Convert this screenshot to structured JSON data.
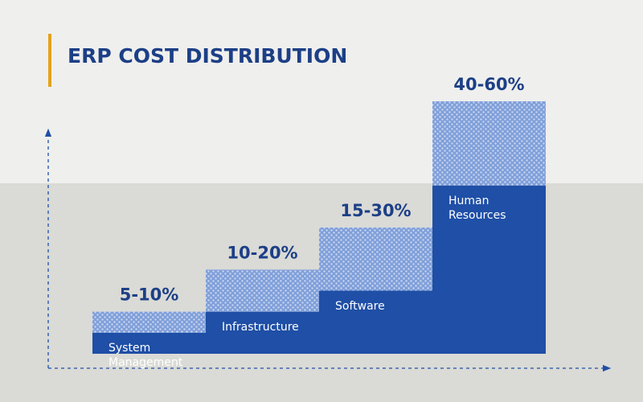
{
  "chart_data": {
    "type": "range-bar",
    "title": "ERP COST DISTRIBUTION",
    "categories": [
      "System Management",
      "Infrastructure",
      "Software",
      "Human Resources"
    ],
    "low": [
      5,
      10,
      15,
      40
    ],
    "high": [
      10,
      20,
      30,
      60
    ],
    "value_labels": [
      "5-10%",
      "10-20%",
      "15-30%",
      "40-60%"
    ],
    "color": "#1f4fa6",
    "range_color": "#7f9fda",
    "accent_color": "#e3a21a",
    "text_color": "#1c3f86"
  }
}
